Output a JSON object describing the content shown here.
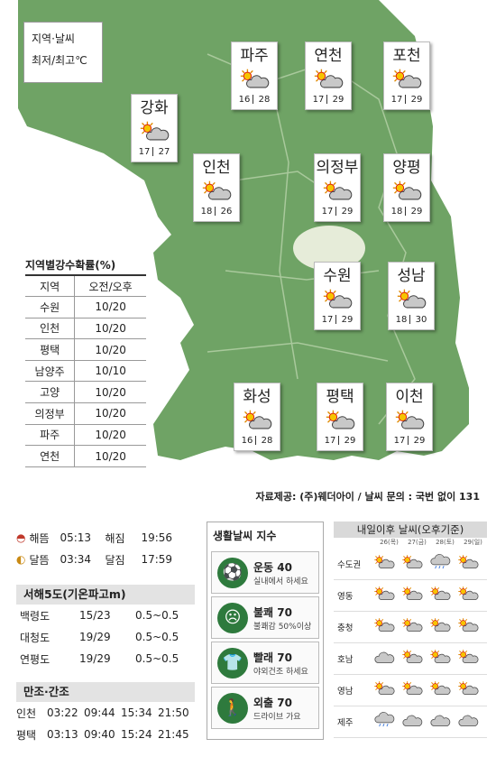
{
  "legend": {
    "line1": "지역·날씨",
    "line2": "최저/최고℃"
  },
  "cities": [
    {
      "name": "파주",
      "low": "16",
      "high": "28",
      "icon": "sun-cloud-icon"
    },
    {
      "name": "연천",
      "low": "17",
      "high": "29",
      "icon": "sun-cloud-icon"
    },
    {
      "name": "포천",
      "low": "17",
      "high": "29",
      "icon": "sun-cloud-icon"
    },
    {
      "name": "강화",
      "low": "17",
      "high": "27",
      "icon": "sun-cloud-icon"
    },
    {
      "name": "인천",
      "low": "18",
      "high": "26",
      "icon": "sun-cloud-icon"
    },
    {
      "name": "의정부",
      "low": "17",
      "high": "29",
      "icon": "sun-cloud-icon"
    },
    {
      "name": "양평",
      "low": "18",
      "high": "29",
      "icon": "sun-cloud-icon"
    },
    {
      "name": "수원",
      "low": "17",
      "high": "29",
      "icon": "sun-cloud-icon"
    },
    {
      "name": "성남",
      "low": "18",
      "high": "30",
      "icon": "sun-cloud-icon"
    },
    {
      "name": "화성",
      "low": "16",
      "high": "28",
      "icon": "sun-cloud-icon"
    },
    {
      "name": "평택",
      "low": "17",
      "high": "29",
      "icon": "sun-cloud-icon"
    },
    {
      "name": "이천",
      "low": "17",
      "high": "29",
      "icon": "sun-cloud-icon"
    }
  ],
  "precip": {
    "title": "지역별강수확률(%)",
    "headers": [
      "지역",
      "오전/오후"
    ],
    "rows": [
      [
        "수원",
        "10/20"
      ],
      [
        "인천",
        "10/20"
      ],
      [
        "평택",
        "10/20"
      ],
      [
        "남양주",
        "10/10"
      ],
      [
        "고양",
        "10/20"
      ],
      [
        "의정부",
        "10/20"
      ],
      [
        "파주",
        "10/20"
      ],
      [
        "연천",
        "10/20"
      ]
    ]
  },
  "source": "자료제공: (주)웨더아이 / 날씨 문의 : 국번 없이 131",
  "sun": {
    "rise_label": "해뜸",
    "rise": "05:13",
    "set_label": "해짐",
    "set": "19:56"
  },
  "moon": {
    "rise_label": "달뜸",
    "rise": "03:34",
    "set_label": "달짐",
    "set": "17:59"
  },
  "sea": {
    "title": "서해5도(기온파고m)",
    "rows": [
      [
        "백령도",
        "15/23",
        "0.5~0.5"
      ],
      [
        "대청도",
        "19/29",
        "0.5~0.5"
      ],
      [
        "연평도",
        "19/29",
        "0.5~0.5"
      ]
    ]
  },
  "tide": {
    "title": "만조·간조",
    "rows": [
      [
        "인천",
        "03:22",
        "09:44",
        "15:34",
        "21:50"
      ],
      [
        "평택",
        "03:13",
        "09:40",
        "15:24",
        "21:45"
      ]
    ]
  },
  "life": {
    "title": "생활날씨 지수",
    "items": [
      {
        "label": "운동 40",
        "desc": "실내에서 하세요",
        "icon": "exercise-icon"
      },
      {
        "label": "불쾌 70",
        "desc": "불쾌감 50%이상",
        "icon": "discomfort-icon"
      },
      {
        "label": "빨래 70",
        "desc": "야외건조 하세요",
        "icon": "laundry-icon"
      },
      {
        "label": "외출 70",
        "desc": "드라이브 가요",
        "icon": "outing-icon"
      }
    ]
  },
  "forecast": {
    "title": "내일이후 날씨(오후기준)",
    "days": [
      "26(목)",
      "27(금)",
      "28(토)",
      "29(일)"
    ],
    "regions": [
      {
        "name": "수도권",
        "icons": [
          "sun-cloud",
          "sun-cloud",
          "cloud-rain",
          "sun-cloud"
        ]
      },
      {
        "name": "영동",
        "icons": [
          "sun-cloud",
          "sun-cloud",
          "sun-cloud",
          "sun-cloud"
        ]
      },
      {
        "name": "충청",
        "icons": [
          "sun-cloud",
          "sun-cloud",
          "sun-cloud",
          "sun-cloud"
        ]
      },
      {
        "name": "호남",
        "icons": [
          "cloud",
          "sun-cloud",
          "sun-cloud",
          "sun-cloud"
        ]
      },
      {
        "name": "영남",
        "icons": [
          "sun-cloud",
          "sun-cloud",
          "sun-cloud",
          "sun-cloud"
        ]
      },
      {
        "name": "제주",
        "icons": [
          "cloud-rain",
          "cloud",
          "cloud",
          "cloud"
        ]
      }
    ]
  }
}
